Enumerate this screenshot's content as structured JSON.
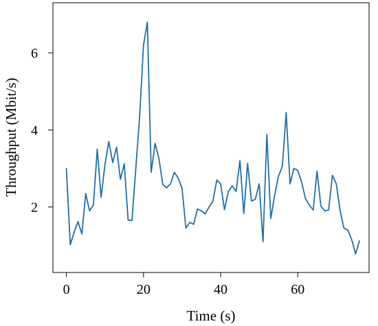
{
  "chart_data": {
    "type": "line",
    "title": "",
    "xlabel": "Time (s)",
    "ylabel": "Throughput (Mbit/s)",
    "xlim": [
      -3.5,
      78.5
    ],
    "ylim": [
      0.3,
      7.3
    ],
    "xticks": [
      0,
      20,
      40,
      60
    ],
    "yticks": [
      2,
      4,
      6
    ],
    "grid": false,
    "legend": "none",
    "series": [
      {
        "color": "#1f6ea8",
        "x": [
          0,
          1,
          2,
          3,
          4,
          5,
          6,
          7,
          8,
          9,
          10,
          11,
          12,
          13,
          14,
          15,
          16,
          17,
          18,
          19,
          20,
          21,
          22,
          23,
          24,
          25,
          26,
          27,
          28,
          29,
          30,
          31,
          32,
          33,
          34,
          35,
          36,
          37,
          38,
          39,
          40,
          41,
          42,
          43,
          44,
          45,
          46,
          47,
          48,
          49,
          50,
          51,
          52,
          53,
          54,
          55,
          56,
          57,
          58,
          59,
          60,
          61,
          62,
          63,
          64,
          65,
          66,
          67,
          68,
          69,
          70,
          71,
          72,
          73,
          74,
          75,
          76
        ],
        "y": [
          3.0,
          1.02,
          1.35,
          1.62,
          1.3,
          2.35,
          1.9,
          2.05,
          3.5,
          2.25,
          3.1,
          3.7,
          3.15,
          3.55,
          2.72,
          3.12,
          1.66,
          1.65,
          3.0,
          4.35,
          6.2,
          6.8,
          2.9,
          3.65,
          3.25,
          2.58,
          2.5,
          2.6,
          2.9,
          2.75,
          2.48,
          1.45,
          1.6,
          1.55,
          1.95,
          1.9,
          1.82,
          2.0,
          2.15,
          2.7,
          2.6,
          1.93,
          2.4,
          2.55,
          2.4,
          3.2,
          1.83,
          3.13,
          2.15,
          2.2,
          2.6,
          1.1,
          3.88,
          1.7,
          2.3,
          2.8,
          3.05,
          4.45,
          2.6,
          3.0,
          2.95,
          2.65,
          2.22,
          2.05,
          1.92,
          2.93,
          2.02,
          1.9,
          1.92,
          2.82,
          2.6,
          1.9,
          1.45,
          1.4,
          1.15,
          0.78,
          1.12
        ]
      }
    ]
  }
}
